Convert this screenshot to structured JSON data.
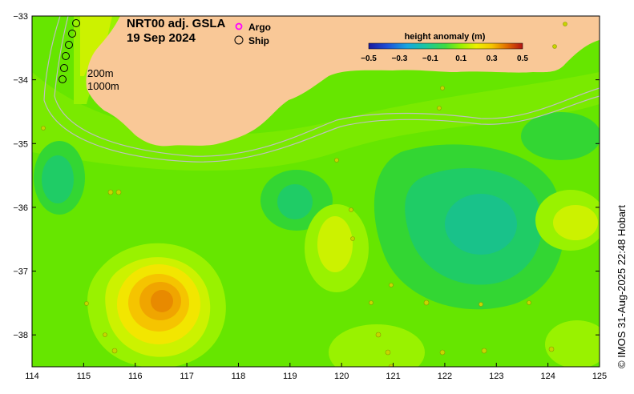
{
  "title": {
    "product": "NRT00 adj. GSLA",
    "date": "19 Sep 2024"
  },
  "legend": {
    "argo_label": "Argo",
    "ship_label": "Ship",
    "argo_color": "#ff00ff",
    "ship_color": "#000000"
  },
  "contours": {
    "label_200": "200m",
    "label_1000": "1000m"
  },
  "colorbar": {
    "title": "height anomaly (m)",
    "ticks": [
      "−0.5",
      "−0.3",
      "−0.1",
      "0.1",
      "0.3",
      "0.5"
    ],
    "tick_values": [
      -0.5,
      -0.3,
      -0.1,
      0.1,
      0.3,
      0.5
    ],
    "range": [
      -0.5,
      0.5
    ]
  },
  "axes": {
    "x_ticks": [
      "114",
      "115",
      "116",
      "117",
      "118",
      "119",
      "120",
      "121",
      "122",
      "123",
      "124",
      "125"
    ],
    "x_values": [
      114,
      115,
      116,
      117,
      118,
      119,
      120,
      121,
      122,
      123,
      124,
      125
    ],
    "y_ticks": [
      "−33",
      "−34",
      "−35",
      "−36",
      "−37",
      "−38"
    ],
    "y_values": [
      -33,
      -34,
      -35,
      -36,
      -37,
      -38
    ],
    "xlim": [
      114,
      125
    ],
    "ylim": [
      -38.5,
      -33
    ]
  },
  "credit": "© IMOS 31-Aug-2025 22:48 Hobart",
  "colors": {
    "land": "#f9c897",
    "ocean_base": "#66e600",
    "light_green": "#99f200",
    "mid_green": "#33d633",
    "teal": "#1fcc66",
    "deep_teal": "#19c28a",
    "yellow_green": "#ccf200",
    "yellow": "#f2e600",
    "orange_yellow": "#f5c400",
    "orange": "#f0a500",
    "deep_orange": "#e88a00",
    "isobath": "#bfbfbf"
  }
}
